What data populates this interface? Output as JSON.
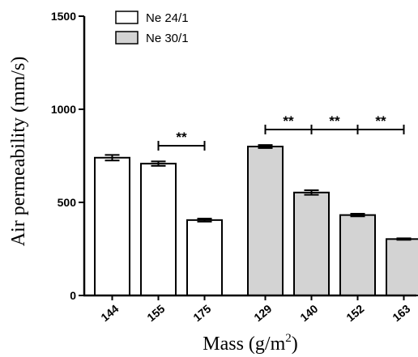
{
  "chart_data": {
    "type": "bar",
    "title": "",
    "xlabel": "Mass (g/m",
    "xlabel_sup": "2",
    "xlabel_close": ")",
    "ylabel": "Air permeability (mm/s)",
    "ylim": [
      0,
      1500
    ],
    "yticks": [
      "0",
      "500",
      "1000",
      "1500"
    ],
    "grid": false,
    "legend_position": "top-left",
    "series": [
      {
        "name": "Ne 24/1",
        "color": "#ffffff",
        "categories": [
          "144",
          "155",
          "175"
        ],
        "values": [
          740,
          708,
          405
        ],
        "errors": [
          15,
          12,
          8
        ]
      },
      {
        "name": "Ne 30/1",
        "color": "#d3d3d3",
        "categories": [
          "129",
          "140",
          "152",
          "163"
        ],
        "values": [
          800,
          553,
          432,
          303
        ],
        "errors": [
          8,
          12,
          7,
          4
        ]
      }
    ],
    "significance": [
      {
        "series": 0,
        "from": 1,
        "to": 2,
        "label": "**"
      },
      {
        "series": 1,
        "from": 0,
        "to": 1,
        "label": "**"
      },
      {
        "series": 1,
        "from": 1,
        "to": 2,
        "label": "**"
      },
      {
        "series": 1,
        "from": 2,
        "to": 3,
        "label": "**"
      }
    ]
  }
}
